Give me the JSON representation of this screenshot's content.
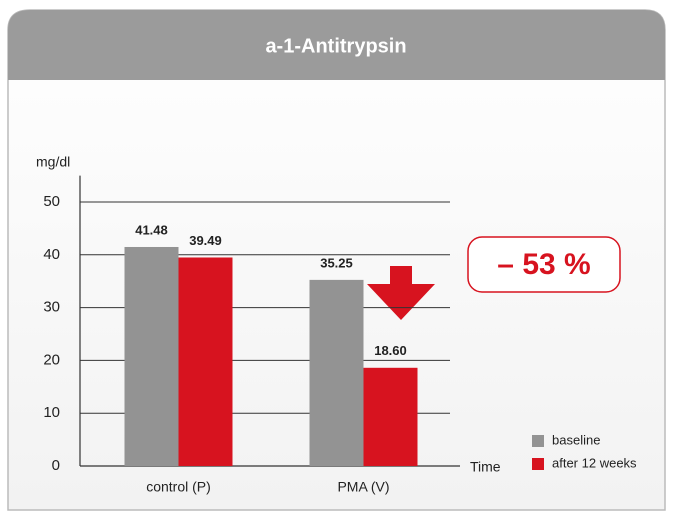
{
  "chart_data": {
    "type": "bar",
    "title": "a-1-Antitrypsin",
    "y_label": "mg/dl",
    "x_label": "Time",
    "categories": [
      "control (P)",
      "PMA (V)"
    ],
    "series": [
      {
        "name": "baseline",
        "color": "#939393",
        "values": [
          41.48,
          35.25
        ]
      },
      {
        "name": "after 12 weeks",
        "color": "#d7131f",
        "values": [
          39.49,
          18.6
        ],
        "value_labels": [
          "39.49",
          "18.60"
        ]
      }
    ],
    "ylim": [
      0,
      55
    ],
    "yticks": [
      0,
      10,
      20,
      30,
      40,
      50
    ],
    "grid": true,
    "annotation": "– 53 %"
  }
}
